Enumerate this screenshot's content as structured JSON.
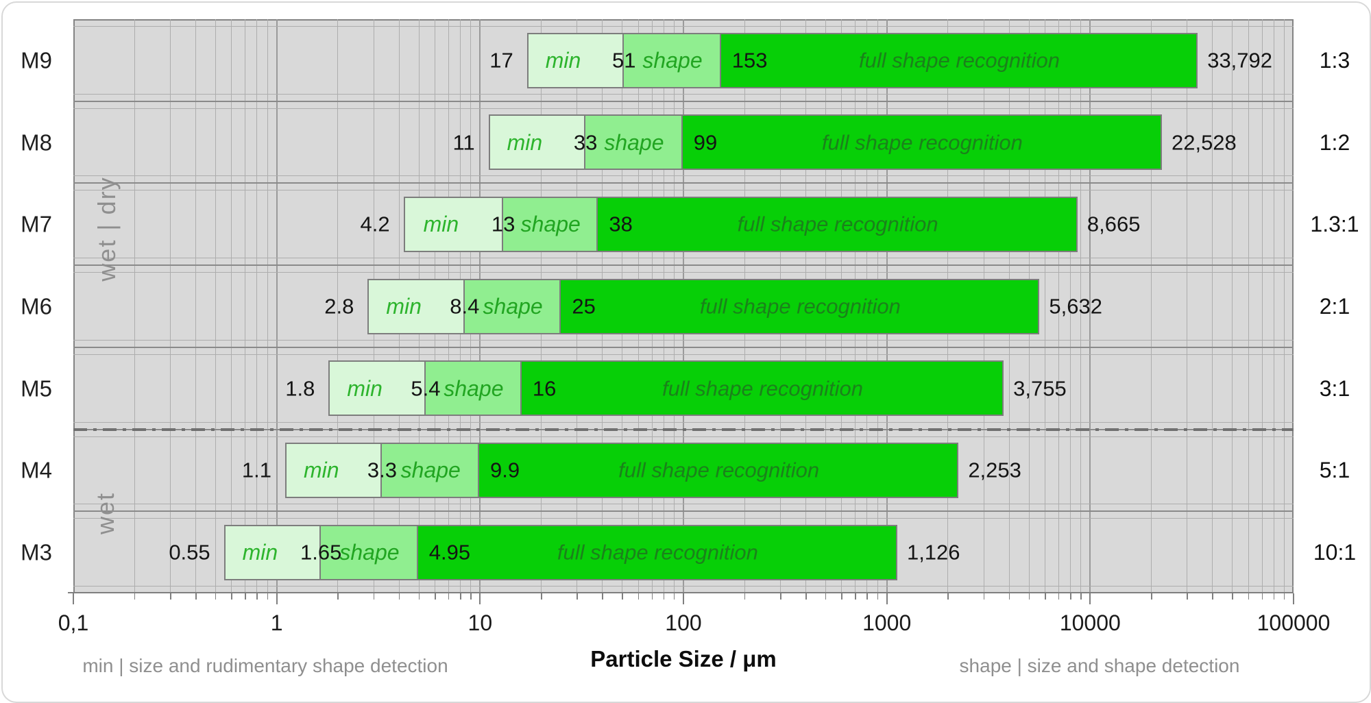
{
  "chart_data": {
    "type": "bar",
    "orientation": "horizontal",
    "title": "",
    "xlabel": "Particle Size / μm",
    "ylabel": "",
    "x_axis": {
      "scale": "log",
      "min": 0.1,
      "max": 100000,
      "tick_values": [
        0.1,
        1,
        10,
        100,
        1000,
        10000,
        100000
      ],
      "tick_labels": [
        "0,1",
        "1",
        "10",
        "100",
        "1000",
        "10000",
        "100000"
      ]
    },
    "segments": [
      "min",
      "shape",
      "full shape recognition"
    ],
    "rows": [
      {
        "label": "M9",
        "values": [
          17,
          51,
          153,
          33792
        ],
        "value_labels": [
          "17",
          "51",
          "153",
          "33,792"
        ],
        "ratio": "1:3"
      },
      {
        "label": "M8",
        "values": [
          11,
          33,
          99,
          22528
        ],
        "value_labels": [
          "11",
          "33",
          "99",
          "22,528"
        ],
        "ratio": "1:2"
      },
      {
        "label": "M7",
        "values": [
          4.2,
          13,
          38,
          8665
        ],
        "value_labels": [
          "4.2",
          "13",
          "38",
          "8,665"
        ],
        "ratio": "1.3:1"
      },
      {
        "label": "M6",
        "values": [
          2.8,
          8.4,
          25,
          5632
        ],
        "value_labels": [
          "2.8",
          "8.4",
          "25",
          "5,632"
        ],
        "ratio": "2:1"
      },
      {
        "label": "M5",
        "values": [
          1.8,
          5.4,
          16,
          3755
        ],
        "value_labels": [
          "1.8",
          "5.4",
          "16",
          "3,755"
        ],
        "ratio": "3:1"
      },
      {
        "label": "M4",
        "values": [
          1.1,
          3.3,
          9.9,
          2253
        ],
        "value_labels": [
          "1.1",
          "3.3",
          "9.9",
          "2,253"
        ],
        "ratio": "5:1"
      },
      {
        "label": "M3",
        "values": [
          0.55,
          1.65,
          4.95,
          1126
        ],
        "value_labels": [
          "0.55",
          "1.65",
          "4.95",
          "1,126"
        ],
        "ratio": "10:1"
      }
    ],
    "row_groups": [
      {
        "label": "wet | dry",
        "rows": [
          "M9",
          "M8",
          "M7",
          "M6",
          "M5"
        ]
      },
      {
        "label": "wet",
        "rows": [
          "M4",
          "M3"
        ]
      }
    ],
    "divider_after_row": "M5",
    "annotations": {
      "left": "min | size and rudimentary shape detection",
      "right": "shape | size and shape detection"
    },
    "legend_position": "none",
    "grid": true,
    "colors": {
      "plot_bg": "#d9d9d9",
      "grid_minor": "#adadad",
      "grid_major": "#9a9a9a",
      "row_line": "#8a8a8a",
      "bar_border": "#7d7d7d",
      "min_fill": "#d9f7d9",
      "shape_fill": "#90ee90",
      "full_fill": "#07cf07",
      "min_text": "#2db42d",
      "shape_text": "#21a521",
      "full_text": "#1b811b",
      "divider": "#707070",
      "axis_line": "#7f7f7f"
    }
  }
}
